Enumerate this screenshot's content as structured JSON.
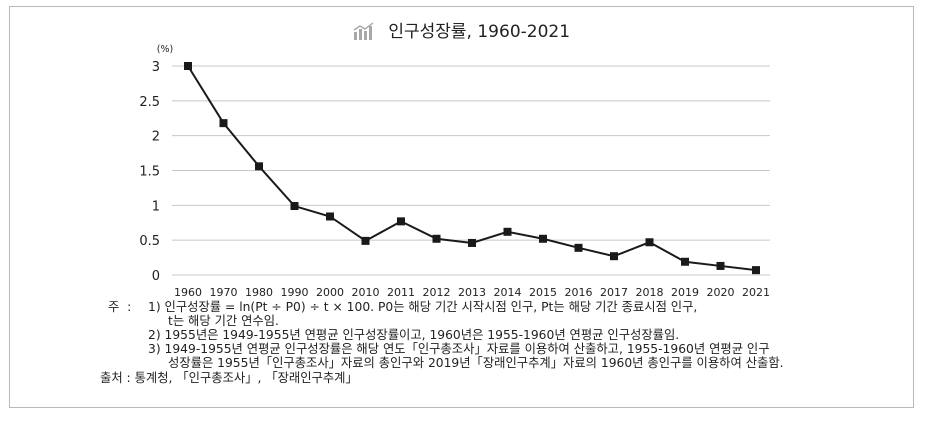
{
  "title": "인구성장률, 1960-2021",
  "chart_data": {
    "type": "line",
    "title": "인구성장률, 1960-2021",
    "ylabel": "(%)",
    "xlabel": "",
    "categories": [
      "1960",
      "1970",
      "1980",
      "1990",
      "2000",
      "2010",
      "2011",
      "2012",
      "2013",
      "2014",
      "2015",
      "2016",
      "2017",
      "2018",
      "2019",
      "2020",
      "2021"
    ],
    "values": [
      3.0,
      2.18,
      1.56,
      0.99,
      0.84,
      0.49,
      0.77,
      0.52,
      0.46,
      0.62,
      0.52,
      0.39,
      0.27,
      0.47,
      0.19,
      0.13,
      0.07
    ],
    "ylim": [
      0,
      3
    ],
    "yticks": [
      "0",
      "0.5",
      "1",
      "1.5",
      "2",
      "2.5",
      "3"
    ],
    "grid": true,
    "colors": {
      "line": "#1a1a1a",
      "grid": "#c8c8c8",
      "icon": "#a8a8a8"
    }
  },
  "notes": {
    "label": "주",
    "n1_line1": "1) 인구성장률 = ln(Pt ÷ P0) ÷ t × 100. P0는 해당 기간 시작시점 인구, Pt는 해당 기간 종료시점 인구,",
    "n1_line2": "t는 해당 기간 연수임.",
    "n2": "2) 1955년은 1949-1955년 연평균 인구성장률이고, 1960년은 1955-1960년 연평균 인구성장률임.",
    "n3_line1": "3) 1949-1955년 연평균 인구성장률은 해당 연도「인구총조사」자료를 이용하여 산출하고, 1955-1960년 연평균 인구",
    "n3_line2": "성장률은 1955년「인구총조사」자료의 총인구와 2019년「장래인구추계」자료의 1960년 총인구를 이용하여 산출함.",
    "source": "출처 : 통계청, 「인구총조사」, 「장래인구추계」"
  }
}
